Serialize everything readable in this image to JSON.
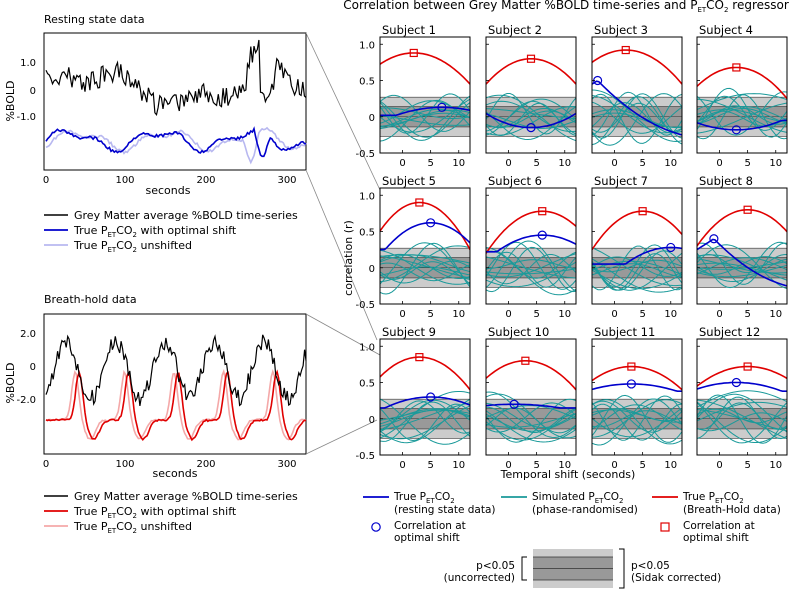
{
  "title": "Correlation between Grey Matter %BOLD time-series and PETCO2 regressor",
  "title_parts": {
    "pre": "Correlation between Grey Matter %BOLD time-series and P",
    "sub": "ET",
    "post": "CO",
    "sub2": "2",
    "tail": " regressor"
  },
  "colors": {
    "grey_matter": "#000000",
    "rest_opt": "#0000cc",
    "rest_unshift": "#b8b8f0",
    "bh_opt": "#e00000",
    "bh_unshift": "#f4a8a8",
    "surrogate": "#1a9a9a",
    "band_outer": "#cccccc",
    "band_inner": "#999999"
  },
  "left_panels": {
    "resting": {
      "title": "Resting state data",
      "ylabel": "%BOLD",
      "yticks": [
        "1.0",
        "0",
        "-1.0"
      ],
      "xticks": [
        "0",
        "100",
        "200",
        "300"
      ],
      "xlabel": "seconds",
      "legend": [
        "Grey Matter average %BOLD time-series",
        "True PETCO2 with optimal shift",
        "True PETCO2 unshifted"
      ]
    },
    "breathhold": {
      "title": "Breath-hold data",
      "ylabel": "%BOLD",
      "yticks": [
        "2.0",
        "0",
        "-2.0"
      ],
      "xticks": [
        "0",
        "100",
        "200",
        "300"
      ],
      "xlabel": "seconds",
      "legend": [
        "Grey Matter average %BOLD time-series",
        "True PETCO2 with optimal shift",
        "True PETCO2 unshifted"
      ]
    }
  },
  "grid_axes": {
    "ylabel": "correlation (r)",
    "xlabel": "Temporal shift (seconds)",
    "yticks": [
      "1.0",
      "0.5",
      "0",
      "-0.5"
    ],
    "xticks": [
      "0",
      "5",
      "10"
    ]
  },
  "chart_data": {
    "type": "line",
    "xlabel": "Temporal shift (seconds)",
    "ylabel": "correlation (r)",
    "xlim": [
      -4,
      12
    ],
    "ylim": [
      -0.5,
      1.1
    ],
    "thresholds": {
      "uncorrected": 0.14,
      "sidak_corrected": 0.27
    },
    "subjects": [
      {
        "name": "Subject 1",
        "bh": {
          "peak_x": 2,
          "peak_y": 0.88,
          "edge": 0.45
        },
        "rest": {
          "peak_x": 7,
          "peak_y": 0.13,
          "mode": "peak",
          "start": 0.02
        }
      },
      {
        "name": "Subject 2",
        "bh": {
          "peak_x": 4,
          "peak_y": 0.8,
          "edge": 0.45
        },
        "rest": {
          "peak_x": 4,
          "peak_y": -0.15,
          "mode": "trough",
          "start": 0.05
        }
      },
      {
        "name": "Subject 3",
        "bh": {
          "peak_x": 2,
          "peak_y": 0.92,
          "edge": 0.45
        },
        "rest": {
          "peak_x": -3,
          "peak_y": 0.5,
          "mode": "decline",
          "start": 0.5
        }
      },
      {
        "name": "Subject 4",
        "bh": {
          "peak_x": 3,
          "peak_y": 0.68,
          "edge": 0.25
        },
        "rest": {
          "peak_x": 3,
          "peak_y": -0.18,
          "mode": "trough",
          "start": -0.05
        }
      },
      {
        "name": "Subject 5",
        "bh": {
          "peak_x": 3,
          "peak_y": 0.9,
          "edge": 0.25
        },
        "rest": {
          "peak_x": 5,
          "peak_y": 0.62,
          "mode": "peak",
          "start": 0.25
        }
      },
      {
        "name": "Subject 6",
        "bh": {
          "peak_x": 6,
          "peak_y": 0.78,
          "edge": 0.2
        },
        "rest": {
          "peak_x": 6,
          "peak_y": 0.45,
          "mode": "peak",
          "start": 0.22
        }
      },
      {
        "name": "Subject 7",
        "bh": {
          "peak_x": 5,
          "peak_y": 0.78,
          "edge": 0.25
        },
        "rest": {
          "peak_x": 10,
          "peak_y": 0.28,
          "mode": "peak",
          "start": 0.05
        }
      },
      {
        "name": "Subject 8",
        "bh": {
          "peak_x": 5,
          "peak_y": 0.8,
          "edge": 0.3
        },
        "rest": {
          "peak_x": -1,
          "peak_y": 0.4,
          "mode": "decline",
          "start": 0.35
        }
      },
      {
        "name": "Subject 9",
        "bh": {
          "peak_x": 3,
          "peak_y": 0.85,
          "edge": 0.4
        },
        "rest": {
          "peak_x": 5,
          "peak_y": 0.3,
          "mode": "peak",
          "start": 0.15
        }
      },
      {
        "name": "Subject 10",
        "bh": {
          "peak_x": 3,
          "peak_y": 0.8,
          "edge": 0.4
        },
        "rest": {
          "peak_x": 1,
          "peak_y": 0.2,
          "mode": "peak",
          "start": 0.15
        }
      },
      {
        "name": "Subject 11",
        "bh": {
          "peak_x": 3,
          "peak_y": 0.72,
          "edge": 0.4
        },
        "rest": {
          "peak_x": 3,
          "peak_y": 0.48,
          "mode": "peak",
          "start": 0.38
        }
      },
      {
        "name": "Subject 12",
        "bh": {
          "peak_x": 5,
          "peak_y": 0.72,
          "edge": 0.45
        },
        "rest": {
          "peak_x": 3,
          "peak_y": 0.5,
          "mode": "peak",
          "start": 0.38
        }
      }
    ]
  },
  "bottom_legend": {
    "rest_line": [
      "True PETCO2",
      "(resting state data)"
    ],
    "surrogate_line": [
      "Simulated PETCO2",
      "(phase-randomised)"
    ],
    "bh_line": [
      "True PETCO2",
      "(Breath-Hold data)"
    ],
    "rest_marker": [
      "Correlation at",
      "optimal shift"
    ],
    "bh_marker": [
      "Correlation at",
      "optimal shift"
    ],
    "p_uncorr": [
      "p<0.05",
      "(uncorrected)"
    ],
    "p_sidak": [
      "p<0.05",
      "(Sidak corrected)"
    ]
  }
}
